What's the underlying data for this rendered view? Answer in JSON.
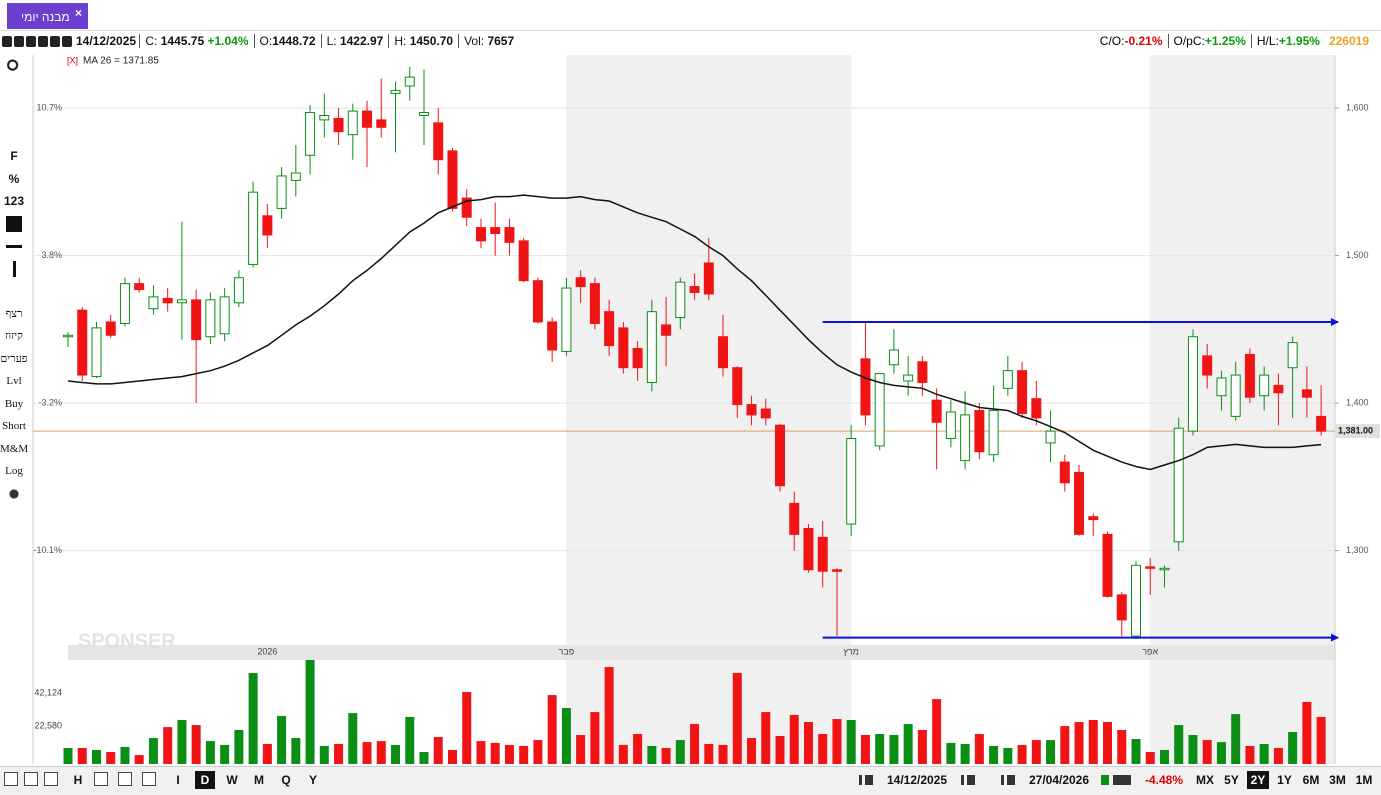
{
  "tab": {
    "title": "מבנה יומי",
    "close": "×"
  },
  "info_bar": {
    "date": "14/12/2025",
    "close_label": "C:",
    "close": "1445.75",
    "close_change": "+1.04%",
    "open_label": "O:",
    "open": "1448.72",
    "low_label": "L:",
    "low": "1422.97",
    "high_label": "H:",
    "high": "1450.70",
    "vol_label": "Vol:",
    "vol": "7657",
    "co_label": "C/O:",
    "co": "-0.21%",
    "opc_label": "O/pC:",
    "opc": "+1.25%",
    "hl_label": "H/L:",
    "hl": "+1.95%",
    "id": "226019"
  },
  "left_tools": [
    "F",
    "%",
    "123",
    "רצף",
    "קיזוז",
    "פערים",
    "Lvl",
    "Buy",
    "Short",
    "M&M",
    "Log"
  ],
  "bottom_bar": {
    "chart_mode": "H",
    "periods": [
      "I",
      "D",
      "W",
      "M",
      "Q",
      "Y"
    ],
    "range_start": "14/12/2025",
    "range_end": "27/04/2026",
    "range_change": "-4.48%",
    "spans": [
      "MX",
      "5Y",
      "2Y",
      "1Y",
      "6M",
      "3M",
      "1M"
    ]
  },
  "chart_data": {
    "type": "candlestick",
    "watermark": "SPONSER",
    "indicator_close": "[X]",
    "indicator_label": "MA 26 = 1371.85",
    "categories": [
      null,
      null,
      null,
      null,
      null,
      null,
      null,
      null,
      null,
      null,
      null,
      null,
      null,
      null,
      "2026",
      null,
      null,
      null,
      null,
      null,
      null,
      null,
      null,
      null,
      null,
      null,
      null,
      null,
      null,
      null,
      null,
      null,
      null,
      null,
      null,
      "פבר",
      null,
      null,
      null,
      null,
      null,
      null,
      null,
      null,
      null,
      null,
      null,
      null,
      null,
      null,
      null,
      null,
      null,
      null,
      null,
      "מרץ",
      null,
      null,
      null,
      null,
      null,
      null,
      null,
      null,
      null,
      null,
      null,
      null,
      null,
      null,
      null,
      null,
      null,
      null,
      null,
      null,
      "אפר",
      null,
      null,
      null,
      null,
      null,
      null,
      null,
      null,
      null,
      null,
      null,
      null
    ],
    "open": [
      1445,
      1463,
      1418,
      1455,
      1454,
      1481,
      1464,
      1471,
      1468,
      1470,
      1445,
      1447,
      1468,
      1494,
      1527,
      1532,
      1551,
      1568,
      1592,
      1593,
      1582,
      1598,
      1592,
      1610,
      1615,
      1595,
      1590,
      1571,
      1539,
      1519,
      1519,
      1519,
      1510,
      1483,
      1455,
      1435,
      1485,
      1481,
      1462,
      1451,
      1437,
      1414,
      1453,
      1458,
      1479,
      1495,
      1445,
      1424,
      1399,
      1396,
      1385,
      1332,
      1315,
      1309,
      1287,
      1318,
      1430,
      1371,
      1426,
      1415,
      1428,
      1402,
      1376,
      1361,
      1395,
      1365,
      1410,
      1422,
      1403,
      1373,
      1360,
      1353,
      1323,
      1311,
      1270,
      1242,
      1289,
      1287,
      1306,
      1381,
      1432,
      1405,
      1391,
      1433,
      1405,
      1412,
      1424,
      1409,
      1391
    ],
    "high": [
      1448,
      1465,
      1455,
      1460,
      1485,
      1485,
      1480,
      1478,
      1523,
      1477,
      1475,
      1478,
      1490,
      1550,
      1535,
      1560,
      1575,
      1602,
      1610,
      1600,
      1603,
      1605,
      1620,
      1618,
      1628,
      1626,
      1600,
      1573,
      1545,
      1525,
      1536,
      1525,
      1512,
      1485,
      1458,
      1485,
      1490,
      1485,
      1470,
      1455,
      1442,
      1470,
      1472,
      1485,
      1488,
      1512,
      1460,
      1425,
      1405,
      1403,
      1386,
      1340,
      1318,
      1320,
      1288,
      1385,
      1455,
      1420,
      1450,
      1432,
      1432,
      1410,
      1402,
      1408,
      1400,
      1412,
      1432,
      1428,
      1415,
      1395,
      1365,
      1358,
      1325,
      1313,
      1272,
      1293,
      1295,
      1290,
      1390,
      1450,
      1440,
      1422,
      1428,
      1437,
      1425,
      1420,
      1445,
      1425,
      1412
    ],
    "low": [
      1438,
      1415,
      1417,
      1444,
      1452,
      1475,
      1460,
      1462,
      1443,
      1400,
      1440,
      1442,
      1465,
      1492,
      1505,
      1525,
      1540,
      1555,
      1580,
      1575,
      1565,
      1560,
      1580,
      1570,
      1605,
      1575,
      1555,
      1530,
      1520,
      1505,
      1500,
      1500,
      1482,
      1454,
      1428,
      1432,
      1468,
      1450,
      1432,
      1420,
      1415,
      1408,
      1425,
      1450,
      1470,
      1470,
      1418,
      1390,
      1385,
      1385,
      1340,
      1300,
      1285,
      1275,
      1242,
      1310,
      1385,
      1368,
      1420,
      1405,
      1405,
      1355,
      1370,
      1355,
      1362,
      1360,
      1405,
      1390,
      1385,
      1360,
      1340,
      1310,
      1310,
      1268,
      1242,
      1240,
      1270,
      1275,
      1300,
      1378,
      1410,
      1395,
      1388,
      1400,
      1395,
      1385,
      1390,
      1390,
      1378
    ],
    "close": [
      1446,
      1419,
      1451,
      1446,
      1481,
      1477,
      1472,
      1468,
      1470,
      1443,
      1470,
      1472,
      1485,
      1543,
      1514,
      1554,
      1556,
      1597,
      1595,
      1584,
      1598,
      1587,
      1587,
      1612,
      1621,
      1597,
      1565,
      1532,
      1526,
      1510,
      1515,
      1509,
      1483,
      1455,
      1436,
      1478,
      1479,
      1454,
      1439,
      1424,
      1424,
      1462,
      1446,
      1482,
      1475,
      1474,
      1424,
      1399,
      1392,
      1390,
      1344,
      1311,
      1287,
      1286,
      1286,
      1376,
      1392,
      1420,
      1436,
      1419,
      1414,
      1387,
      1394,
      1392,
      1367,
      1395,
      1422,
      1393,
      1390,
      1381,
      1346,
      1311,
      1321,
      1269,
      1253,
      1290,
      1288,
      1288,
      1383,
      1445,
      1419,
      1417,
      1419,
      1404,
      1419,
      1407,
      1441,
      1404,
      1381
    ],
    "ma": [
      1415,
      1414,
      1413,
      1413,
      1414,
      1415,
      1416,
      1417,
      1418,
      1420,
      1422,
      1425,
      1429,
      1434,
      1439,
      1446,
      1453,
      1459,
      1466,
      1474,
      1483,
      1490,
      1498,
      1507,
      1516,
      1522,
      1529,
      1533,
      1537,
      1538,
      1540,
      1540,
      1541,
      1540,
      1539,
      1539,
      1540,
      1538,
      1537,
      1533,
      1529,
      1526,
      1523,
      1518,
      1513,
      1506,
      1500,
      1491,
      1483,
      1473,
      1463,
      1453,
      1443,
      1434,
      1426,
      1421,
      1417,
      1414,
      1412,
      1411,
      1410,
      1406,
      1403,
      1400,
      1397,
      1396,
      1395,
      1391,
      1388,
      1384,
      1380,
      1374,
      1368,
      1364,
      1360,
      1357,
      1355,
      1358,
      1361,
      1365,
      1370,
      1371,
      1372,
      1371,
      1370,
      1370,
      1370,
      1371,
      1371.85
    ],
    "ma_color": "#111111",
    "up_color": "#0a8f14",
    "down_color": "#f01414",
    "ylim": [
      1236,
      1636
    ],
    "yticks": [
      {
        "value": 1300,
        "label": "1,300"
      },
      {
        "value": 1400,
        "label": "1,400"
      },
      {
        "value": 1500,
        "label": "1,500"
      },
      {
        "value": 1600,
        "label": "1,600"
      }
    ],
    "pct_ticks": [
      {
        "value": 1300,
        "label": "-10.1%"
      },
      {
        "value": 1400,
        "label": "-3.2%"
      },
      {
        "value": 1500,
        "label": "3.8%"
      },
      {
        "value": 1600,
        "label": "10.7%"
      }
    ],
    "grid": true,
    "levels": [
      {
        "value": 1455,
        "color": "#1010d0"
      },
      {
        "value": 1241,
        "color": "#1010d0"
      }
    ],
    "last_price": {
      "value": 1381,
      "label": "1,381.00",
      "color": "#d9a066"
    },
    "volume": [
      9500,
      9500,
      8300,
      7100,
      10100,
      5300,
      15400,
      21900,
      26100,
      23100,
      13600,
      11300,
      20200,
      54000,
      11900,
      28500,
      15400,
      61700,
      10700,
      11900,
      30200,
      13000,
      13600,
      11300,
      27900,
      7100,
      16000,
      8300,
      42700,
      13600,
      12500,
      11300,
      10700,
      14200,
      40900,
      33200,
      17200,
      30800,
      57500,
      11300,
      17800,
      10700,
      9500,
      14200,
      23700,
      11900,
      11300,
      54000,
      15400,
      30800,
      16600,
      29100,
      24900,
      17800,
      26700,
      26100,
      17200,
      17800,
      17200,
      23700,
      20200,
      38500,
      12500,
      11900,
      17800,
      10700,
      9500,
      11300,
      14200,
      14200,
      22500,
      24900,
      26100,
      24900,
      20200,
      14800,
      7100,
      8300,
      23100,
      17200,
      14200,
      13000,
      29600,
      10700,
      11900,
      9500,
      19000,
      36800,
      27900
    ],
    "volume_ylim": [
      0,
      61700
    ],
    "volume_yticks": [
      {
        "value": 22580,
        "label": "22,580"
      },
      {
        "value": 42124,
        "label": "42,124"
      }
    ]
  }
}
